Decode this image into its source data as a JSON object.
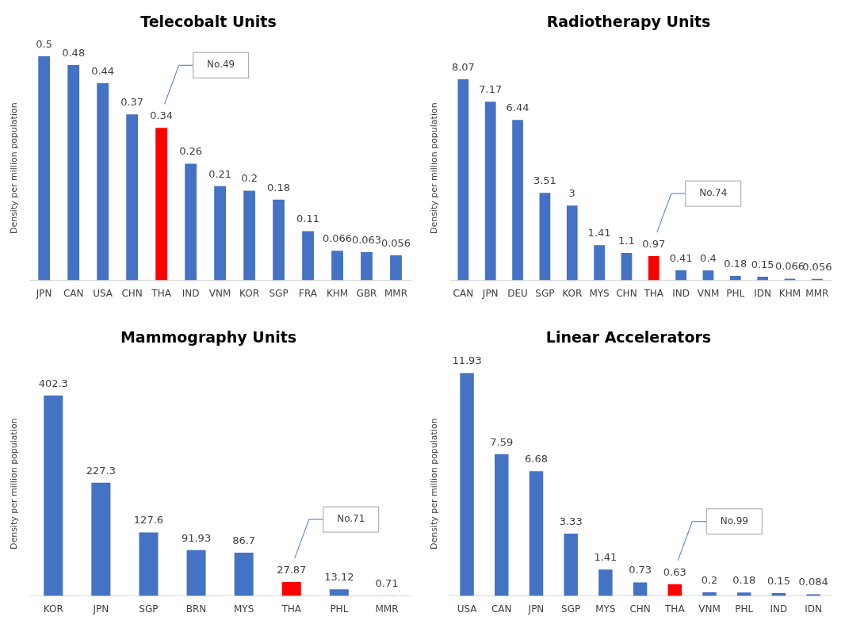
{
  "chart_data": [
    {
      "type": "bar",
      "title": "Telecobalt Units",
      "ylabel": "Density per million population",
      "categories": [
        "JPN",
        "CAN",
        "USA",
        "CHN",
        "THA",
        "IND",
        "VNM",
        "KOR",
        "SGP",
        "FRA",
        "KHM",
        "GBR",
        "MMR"
      ],
      "values": [
        0.5,
        0.48,
        0.44,
        0.37,
        0.34,
        0.26,
        0.21,
        0.2,
        0.18,
        0.11,
        0.066,
        0.063,
        0.056
      ],
      "colors": [
        "#4472c4",
        "#4472c4",
        "#4472c4",
        "#4472c4",
        "#ff0000",
        "#4472c4",
        "#4472c4",
        "#4472c4",
        "#4472c4",
        "#4472c4",
        "#4472c4",
        "#4472c4",
        "#4472c4"
      ],
      "data_labels": true,
      "tick_labels": "x",
      "grid": false,
      "legend": false,
      "annotations": [
        "No.49"
      ]
    },
    {
      "type": "bar",
      "title": "Radiotherapy Units",
      "ylabel": "Density per million population",
      "categories": [
        "CAN",
        "JPN",
        "DEU",
        "SGP",
        "KOR",
        "MYS",
        "CHN",
        "THA",
        "IND",
        "VNM",
        "PHL",
        "IDN",
        "KHM",
        "MMR"
      ],
      "values": [
        8.07,
        7.17,
        6.44,
        3.51,
        3,
        1.41,
        1.1,
        0.97,
        0.41,
        0.4,
        0.18,
        0.15,
        0.066,
        0.056
      ],
      "colors": [
        "#4472c4",
        "#4472c4",
        "#4472c4",
        "#4472c4",
        "#4472c4",
        "#4472c4",
        "#4472c4",
        "#ff0000",
        "#4472c4",
        "#4472c4",
        "#4472c4",
        "#4472c4",
        "#4472c4",
        "#4472c4"
      ],
      "data_labels": true,
      "tick_labels": "x",
      "grid": false,
      "legend": false,
      "annotations": [
        "No.74"
      ]
    },
    {
      "type": "bar",
      "title": "Mammography Units",
      "ylabel": "Density per million population",
      "categories": [
        "KOR",
        "JPN",
        "SGP",
        "BRN",
        "MYS",
        "THA",
        "PHL",
        "MMR"
      ],
      "values": [
        402.3,
        227.3,
        127.6,
        91.93,
        86.7,
        27.87,
        13.12,
        0.71
      ],
      "colors": [
        "#4472c4",
        "#4472c4",
        "#4472c4",
        "#4472c4",
        "#4472c4",
        "#ff0000",
        "#4472c4",
        "#4472c4"
      ],
      "data_labels": true,
      "tick_labels": "x",
      "grid": false,
      "legend": false,
      "annotations": [
        "No.71"
      ]
    },
    {
      "type": "bar",
      "title": "Linear Accelerators",
      "ylabel": "Density per million population",
      "categories": [
        "USA",
        "CAN",
        "JPN",
        "SGP",
        "MYS",
        "CHN",
        "THA",
        "VNM",
        "PHL",
        "IND",
        "IDN"
      ],
      "values": [
        11.93,
        7.59,
        6.68,
        3.33,
        1.41,
        0.73,
        0.63,
        0.2,
        0.18,
        0.15,
        0.084
      ],
      "colors": [
        "#4472c4",
        "#4472c4",
        "#4472c4",
        "#4472c4",
        "#4472c4",
        "#4472c4",
        "#ff0000",
        "#4472c4",
        "#4472c4",
        "#4472c4",
        "#4472c4"
      ],
      "data_labels": true,
      "tick_labels": "x",
      "grid": false,
      "legend": false,
      "annotations": [
        "No.99"
      ]
    }
  ]
}
